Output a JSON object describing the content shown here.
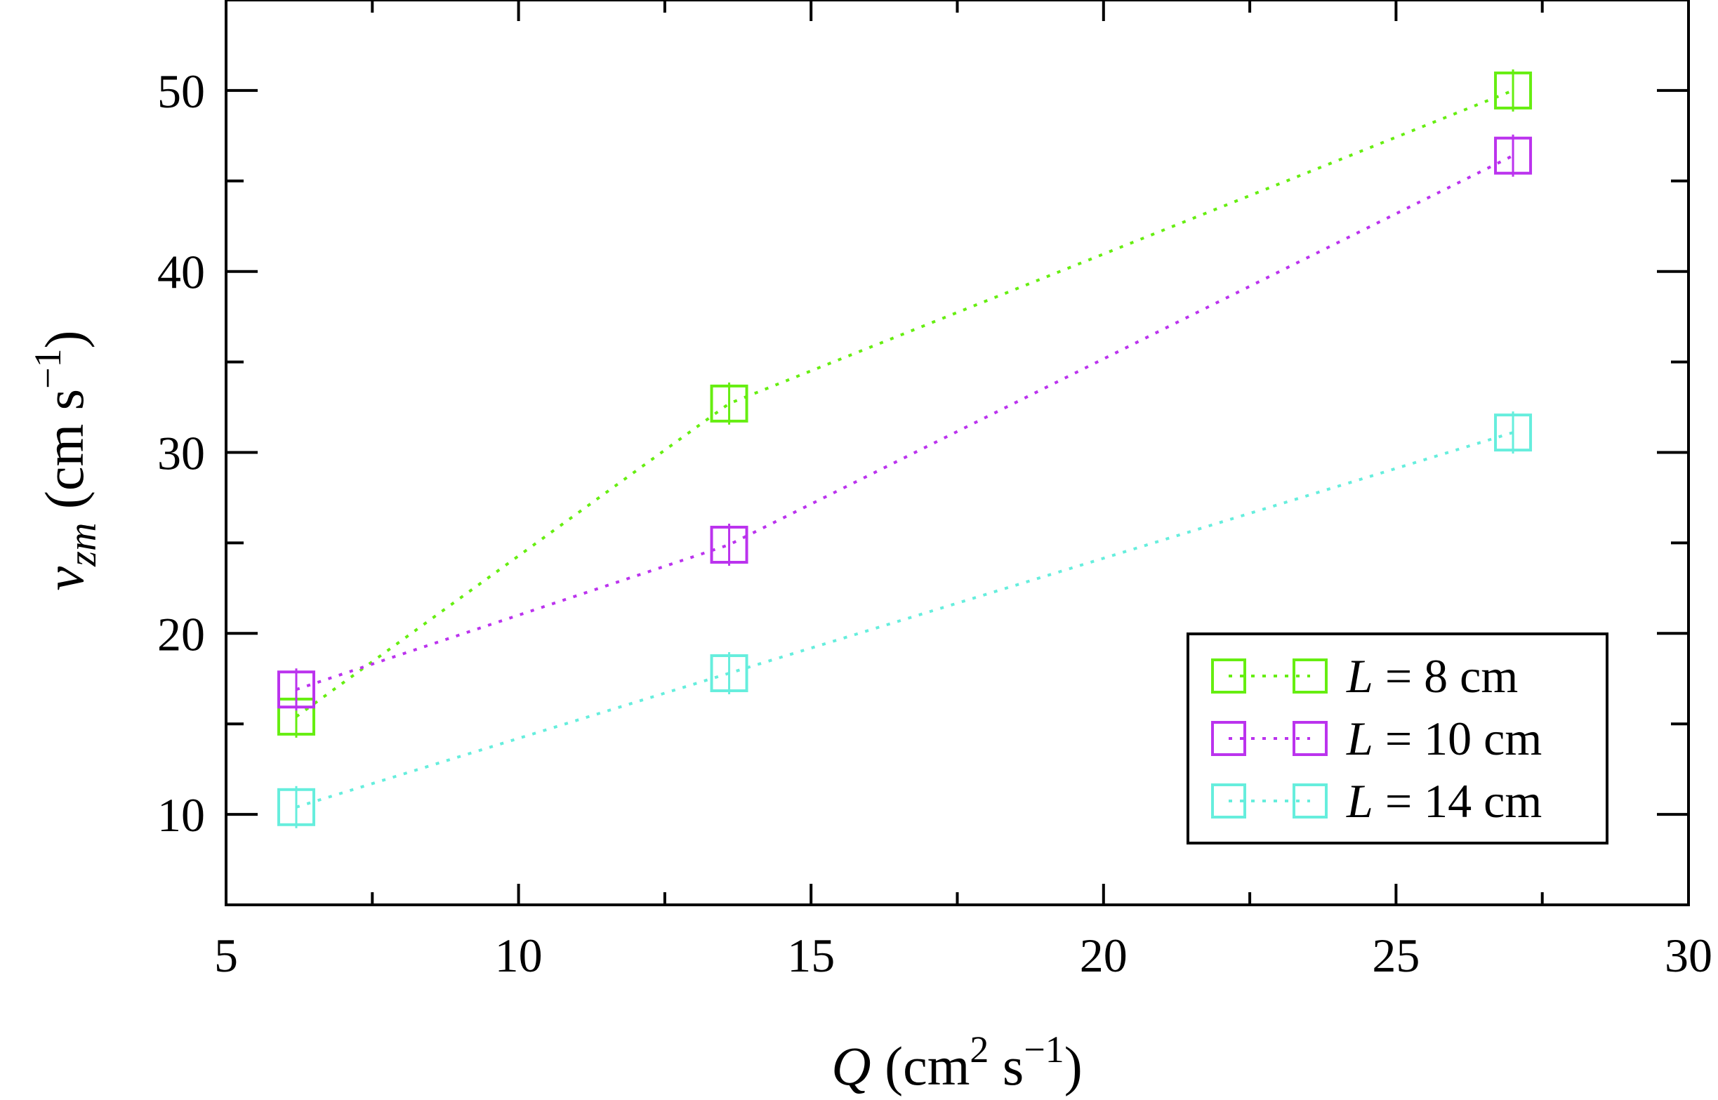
{
  "chart_data": {
    "type": "scatter",
    "x": [
      6.2,
      13.6,
      27.0
    ],
    "series": [
      {
        "name": "L = 8 cm",
        "label_var": "L",
        "label_rest": " = 8 cm",
        "color": "#66ee11",
        "values": [
          15.4,
          32.7,
          50.0
        ]
      },
      {
        "name": "L = 10 cm",
        "label_var": "L",
        "label_rest": " = 10 cm",
        "color": "#bb33ee",
        "values": [
          16.9,
          24.9,
          46.4
        ]
      },
      {
        "name": "L = 14 cm",
        "label_var": "L",
        "label_rest": " = 14 cm",
        "color": "#66eedd",
        "values": [
          10.4,
          17.8,
          31.1
        ]
      }
    ],
    "xlim": [
      5,
      30
    ],
    "ylim": [
      5,
      55
    ],
    "x_ticks": [
      5,
      10,
      15,
      20,
      25,
      30
    ],
    "y_ticks": [
      10,
      20,
      30,
      40,
      50
    ],
    "x_tick_labels": [
      "5",
      "10",
      "15",
      "20",
      "25",
      "30"
    ],
    "y_tick_labels": [
      "10",
      "20",
      "30",
      "40",
      "50"
    ],
    "xlabel": {
      "var": "Q",
      "unit_open": " (cm",
      "sup1": "2",
      "unit_mid": " s",
      "sup2": "−1",
      "unit_close": ")"
    },
    "ylabel": {
      "var": "v",
      "sub": "zm",
      "unit_open": " (cm s",
      "sup": "−1",
      "unit_close": ")"
    },
    "marker": "open-square",
    "line_style": "dotted",
    "grid": false,
    "legend_position": "bottom-right"
  }
}
